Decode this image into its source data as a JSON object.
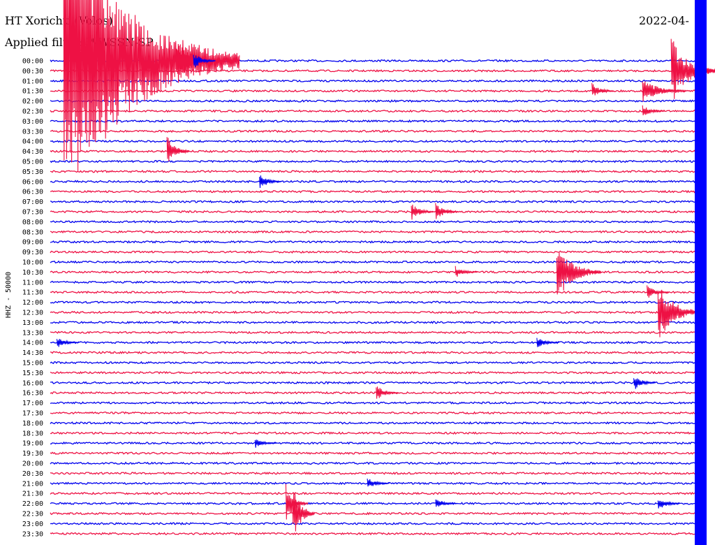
{
  "header": {
    "title": "HT Xorichti (Volos)",
    "filter": "Applied filter: WWSSN-SP",
    "date": "2022-04-"
  },
  "chart_data": {
    "type": "line",
    "subtype": "helicorder",
    "ylabel": "HHZ - 50000",
    "row_labels": [
      "00:00",
      "00:30",
      "01:00",
      "01:30",
      "02:00",
      "02:30",
      "03:00",
      "03:30",
      "04:00",
      "04:30",
      "05:00",
      "05:30",
      "06:00",
      "06:30",
      "07:00",
      "07:30",
      "08:00",
      "08:30",
      "09:00",
      "09:30",
      "10:00",
      "10:30",
      "11:00",
      "11:30",
      "12:00",
      "12:30",
      "13:00",
      "13:30",
      "14:00",
      "14:30",
      "15:00",
      "15:30",
      "16:00",
      "16:30",
      "17:00",
      "17:30",
      "18:00",
      "18:30",
      "19:00",
      "19:30",
      "20:00",
      "20:30",
      "21:00",
      "21:30",
      "22:00",
      "22:30",
      "23:00",
      "23:30"
    ],
    "row_minutes": 30,
    "colors": {
      "even": "#0000ee",
      "odd": "#ee1144"
    },
    "events": [
      {
        "row": 0,
        "minute": 0.6,
        "amplitude": 16,
        "duration": 8,
        "color": "#ee1144"
      },
      {
        "row": 0,
        "minute": 5.7,
        "amplitude": 2.2,
        "duration": 2,
        "color": "#ee1144"
      },
      {
        "row": 0,
        "minute": 6.5,
        "amplitude": 0.9,
        "duration": 1,
        "color": "#0000ee"
      },
      {
        "row": 1,
        "minute": 29.5,
        "amplitude": 1,
        "duration": 1,
        "color": "#ee1144"
      },
      {
        "row": 1,
        "minute": 28.2,
        "amplitude": 3.5,
        "duration": 2,
        "color": "#ee1144"
      },
      {
        "row": 3,
        "minute": 24.6,
        "amplitude": 0.8,
        "duration": 1,
        "color": "#ee1144"
      },
      {
        "row": 3,
        "minute": 26.9,
        "amplitude": 1.2,
        "duration": 2,
        "color": "#ee1144"
      },
      {
        "row": 5,
        "minute": 26.9,
        "amplitude": 0.6,
        "duration": 1,
        "color": "#ee1144"
      },
      {
        "row": 9,
        "minute": 5.3,
        "amplitude": 1.6,
        "duration": 1,
        "color": "#ee1144"
      },
      {
        "row": 12,
        "minute": 9.5,
        "amplitude": 0.8,
        "duration": 1,
        "color": "#0000ee"
      },
      {
        "row": 15,
        "minute": 16.4,
        "amplitude": 0.9,
        "duration": 1,
        "color": "#ee1144"
      },
      {
        "row": 15,
        "minute": 17.5,
        "amplitude": 0.9,
        "duration": 1,
        "color": "#ee1144"
      },
      {
        "row": 21,
        "minute": 18.4,
        "amplitude": 0.6,
        "duration": 1,
        "color": "#ee1144"
      },
      {
        "row": 21,
        "minute": 23.0,
        "amplitude": 3,
        "duration": 2,
        "color": "#ee1144"
      },
      {
        "row": 23,
        "minute": 27.1,
        "amplitude": 0.7,
        "duration": 1,
        "color": "#ee1144"
      },
      {
        "row": 25,
        "minute": 27.6,
        "amplitude": 3,
        "duration": 2,
        "color": "#ee1144"
      },
      {
        "row": 28,
        "minute": 0.3,
        "amplitude": 0.6,
        "duration": 1,
        "color": "#0000ee"
      },
      {
        "row": 28,
        "minute": 22.1,
        "amplitude": 0.6,
        "duration": 1,
        "color": "#0000ee"
      },
      {
        "row": 32,
        "minute": 26.5,
        "amplitude": 0.8,
        "duration": 1,
        "color": "#0000ee"
      },
      {
        "row": 33,
        "minute": 14.8,
        "amplitude": 0.8,
        "duration": 1,
        "color": "#ee1144"
      },
      {
        "row": 38,
        "minute": 9.3,
        "amplitude": 0.5,
        "duration": 1,
        "color": "#0000ee"
      },
      {
        "row": 42,
        "minute": 14.4,
        "amplitude": 0.6,
        "duration": 1,
        "color": "#0000ee"
      },
      {
        "row": 44,
        "minute": 10.7,
        "amplitude": 2,
        "duration": 1,
        "color": "#ee1144"
      },
      {
        "row": 44,
        "minute": 17.5,
        "amplitude": 0.6,
        "duration": 1,
        "color": "#0000ee"
      },
      {
        "row": 44,
        "minute": 27.6,
        "amplitude": 0.7,
        "duration": 1,
        "color": "#0000ee"
      },
      {
        "row": 45,
        "minute": 11.0,
        "amplitude": 3,
        "duration": 1,
        "color": "#ee1144"
      }
    ]
  }
}
